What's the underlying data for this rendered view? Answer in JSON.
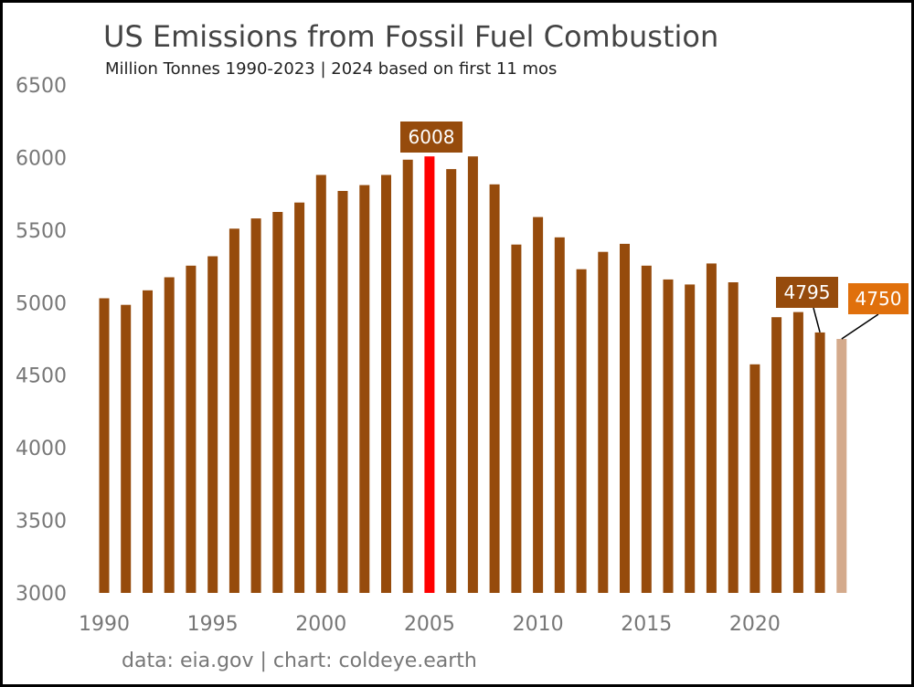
{
  "chart_data": {
    "type": "bar",
    "title": "US Emissions from Fossil Fuel Combustion",
    "subtitle": "Million Tonnes 1990-2023 | 2024 based on first 11 mos",
    "source": "data: eia.gov | chart: coldeye.earth",
    "xlabel": "",
    "ylabel": "",
    "ylim": [
      3000,
      6500
    ],
    "yticks": [
      "3000",
      "3500",
      "4000",
      "4500",
      "5000",
      "5500",
      "6000",
      "6500"
    ],
    "xticks": [
      "1990",
      "1995",
      "2000",
      "2005",
      "2010",
      "2015",
      "2020"
    ],
    "categories": [
      1990,
      1991,
      1992,
      1993,
      1994,
      1995,
      1996,
      1997,
      1998,
      1999,
      2000,
      2001,
      2002,
      2003,
      2004,
      2005,
      2006,
      2007,
      2008,
      2009,
      2010,
      2011,
      2012,
      2013,
      2014,
      2015,
      2016,
      2017,
      2018,
      2019,
      2020,
      2021,
      2022,
      2023,
      2024
    ],
    "values": [
      5030,
      4985,
      5085,
      5175,
      5255,
      5320,
      5510,
      5580,
      5625,
      5690,
      5880,
      5770,
      5810,
      5880,
      5985,
      6008,
      5920,
      6008,
      5815,
      5400,
      5590,
      5450,
      5230,
      5350,
      5405,
      5255,
      5160,
      5125,
      5270,
      5140,
      4575,
      4900,
      4935,
      4795,
      4750
    ],
    "highlight": {
      "2005": "peak",
      "2024": "partial"
    },
    "callouts": [
      {
        "year": 2005,
        "label": "6008"
      },
      {
        "year": 2023,
        "label": "4795"
      },
      {
        "year": 2024,
        "label": "4750"
      }
    ],
    "colors": {
      "bar": "#964B0C",
      "peak": "#FF0000",
      "partial": "#D4AA8C",
      "callout_dark": "#964B0C",
      "callout_orange": "#E0700C"
    }
  }
}
